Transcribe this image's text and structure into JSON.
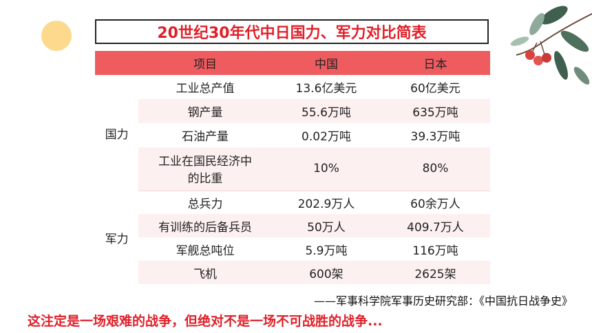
{
  "title": "20世纪30年代中日国力、军力对比简表",
  "table": {
    "headers": [
      "项目",
      "中国",
      "日本"
    ],
    "groups": [
      {
        "category": "国力",
        "rows": [
          {
            "item": "工业总产值",
            "china": "13.6亿美元",
            "japan": "60亿美元"
          },
          {
            "item": "钢产量",
            "china": "55.6万吨",
            "japan": "635万吨"
          },
          {
            "item": "石油产量",
            "china": "0.02万吨",
            "japan": "39.3万吨"
          },
          {
            "item_line1": "工业在国民经济中",
            "item_line2": "的比重",
            "china": "10%",
            "japan": "80%"
          }
        ]
      },
      {
        "category": "军力",
        "rows": [
          {
            "item": "总兵力",
            "china": "202.9万人",
            "japan": "60余万人"
          },
          {
            "item": "有训练的后备兵员",
            "china": "50万人",
            "japan": "409.7万人"
          },
          {
            "item": "军舰总吨位",
            "china": "5.9万吨",
            "japan": "116万吨"
          },
          {
            "item": "飞机",
            "china": "600架",
            "japan": "2625架"
          }
        ]
      }
    ]
  },
  "source": "——军事科学院军事历史研究部：《中国抗日战争史》",
  "conclusion": "这注定是一场艰难的战争，但绝对不是一场不可战胜的战争...",
  "colors": {
    "header_bg": "#ee5c5f",
    "accent_red": "#e0202a",
    "row_pink": "#fdf0f0",
    "deco_yellow": "#fcd98d"
  }
}
